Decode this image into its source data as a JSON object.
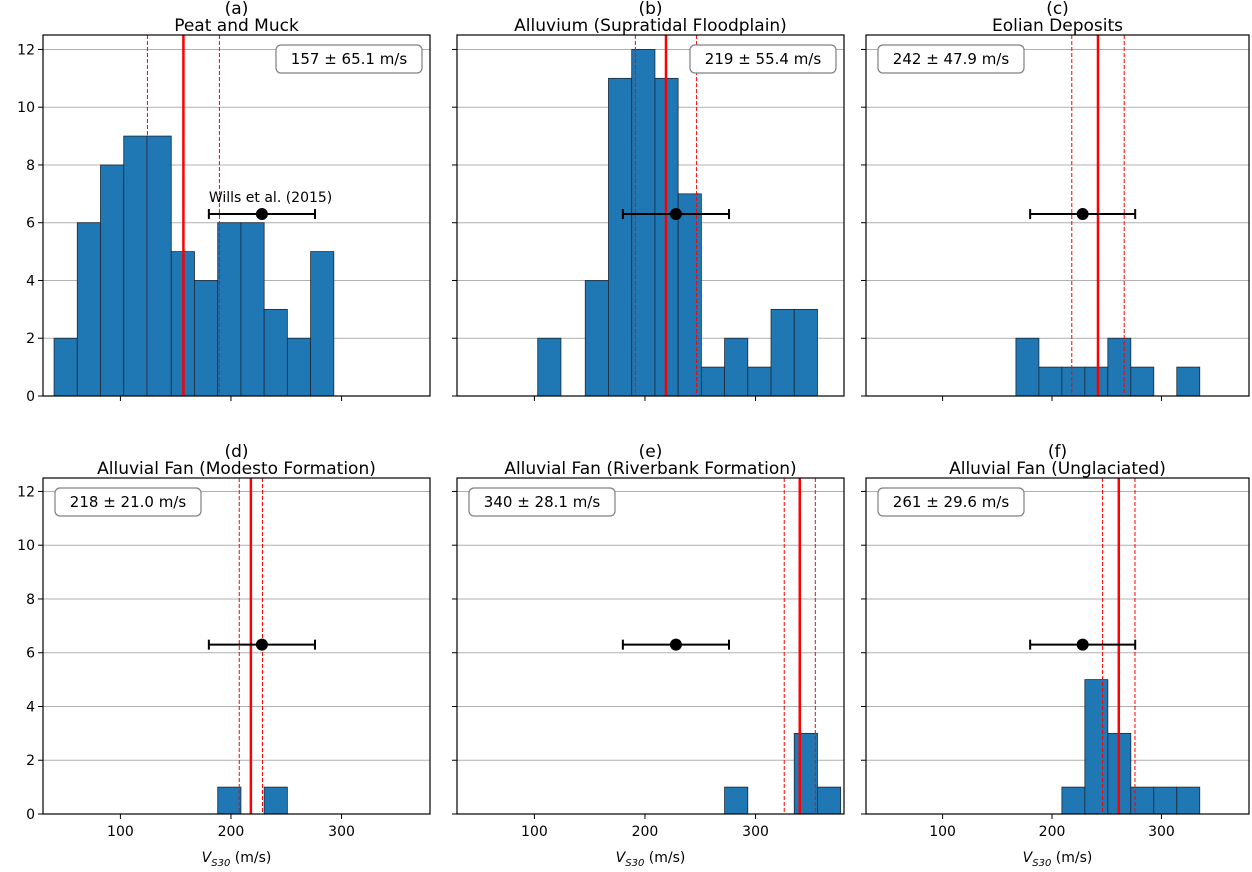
{
  "figure": {
    "xlabel_main": "V",
    "xlabel_sub": "S30",
    "xlabel_unit": " (m/s)",
    "reference_label": "Wills et al. (2015)"
  },
  "colors": {
    "bar": "#1f77b4",
    "bar_edge": "#1a2a3a",
    "mean_line": "#ff0000",
    "reference": "#000000",
    "grid": "#b0b0b0"
  },
  "chart_data": [
    {
      "type": "bar",
      "panel": "(a)",
      "title": "Peat and Muck",
      "stat_label": "157 ± 65.1 m/s",
      "legend_position": "top-right",
      "xlim": [
        30,
        380
      ],
      "ylim": [
        0,
        12.5
      ],
      "xticks": [
        100,
        200,
        300
      ],
      "yticks": [
        0,
        2,
        4,
        6,
        8,
        10,
        12
      ],
      "show_xtick_labels": false,
      "show_ytick_labels": true,
      "show_xlabel": false,
      "bins": [
        {
          "x0": 40,
          "x1": 61,
          "count": 2
        },
        {
          "x0": 61,
          "x1": 82,
          "count": 6
        },
        {
          "x0": 82,
          "x1": 103,
          "count": 8
        },
        {
          "x0": 103,
          "x1": 124,
          "count": 9
        },
        {
          "x0": 124,
          "x1": 146,
          "count": 9
        },
        {
          "x0": 146,
          "x1": 167,
          "count": 5
        },
        {
          "x0": 167,
          "x1": 188,
          "count": 4
        },
        {
          "x0": 188,
          "x1": 209,
          "count": 6
        },
        {
          "x0": 209,
          "x1": 230,
          "count": 6
        },
        {
          "x0": 230,
          "x1": 251,
          "count": 3
        },
        {
          "x0": 251,
          "x1": 272,
          "count": 2
        },
        {
          "x0": 272,
          "x1": 293,
          "count": 5
        }
      ],
      "mean": 157,
      "std": 65.1,
      "reference": {
        "x": 228,
        "xerr_low": 180,
        "xerr_high": 276,
        "y": 6.3
      },
      "show_reference_label": true
    },
    {
      "type": "bar",
      "panel": "(b)",
      "title": "Alluvium (Supratidal Floodplain)",
      "stat_label": "219 ± 55.4 m/s",
      "legend_position": "top-right",
      "xlim": [
        30,
        380
      ],
      "ylim": [
        0,
        12.5
      ],
      "xticks": [
        100,
        200,
        300
      ],
      "yticks": [
        0,
        2,
        4,
        6,
        8,
        10,
        12
      ],
      "show_xtick_labels": false,
      "show_ytick_labels": false,
      "show_xlabel": false,
      "bins": [
        {
          "x0": 103,
          "x1": 124,
          "count": 2
        },
        {
          "x0": 146,
          "x1": 167,
          "count": 4
        },
        {
          "x0": 167,
          "x1": 188,
          "count": 11
        },
        {
          "x0": 188,
          "x1": 209,
          "count": 12
        },
        {
          "x0": 209,
          "x1": 230,
          "count": 11
        },
        {
          "x0": 230,
          "x1": 251,
          "count": 7
        },
        {
          "x0": 251,
          "x1": 272,
          "count": 1
        },
        {
          "x0": 272,
          "x1": 293,
          "count": 2
        },
        {
          "x0": 293,
          "x1": 314,
          "count": 1
        },
        {
          "x0": 314,
          "x1": 335,
          "count": 3
        },
        {
          "x0": 335,
          "x1": 356,
          "count": 3
        }
      ],
      "mean": 219,
      "std": 55.4,
      "reference": {
        "x": 228,
        "xerr_low": 180,
        "xerr_high": 276,
        "y": 6.3
      },
      "show_reference_label": false
    },
    {
      "type": "bar",
      "panel": "(c)",
      "title": "Eolian Deposits",
      "stat_label": "242 ± 47.9 m/s",
      "legend_position": "top-left",
      "xlim": [
        30,
        380
      ],
      "ylim": [
        0,
        12.5
      ],
      "xticks": [
        100,
        200,
        300
      ],
      "yticks": [
        0,
        2,
        4,
        6,
        8,
        10,
        12
      ],
      "show_xtick_labels": false,
      "show_ytick_labels": false,
      "show_xlabel": false,
      "bins": [
        {
          "x0": 167,
          "x1": 188,
          "count": 2
        },
        {
          "x0": 188,
          "x1": 209,
          "count": 1
        },
        {
          "x0": 209,
          "x1": 230,
          "count": 1
        },
        {
          "x0": 230,
          "x1": 251,
          "count": 1
        },
        {
          "x0": 251,
          "x1": 272,
          "count": 2
        },
        {
          "x0": 272,
          "x1": 293,
          "count": 1
        },
        {
          "x0": 314,
          "x1": 335,
          "count": 1
        }
      ],
      "mean": 242,
      "std": 47.9,
      "reference": {
        "x": 228,
        "xerr_low": 180,
        "xerr_high": 276,
        "y": 6.3
      },
      "show_reference_label": false
    },
    {
      "type": "bar",
      "panel": "(d)",
      "title": "Alluvial Fan (Modesto Formation)",
      "stat_label": "218 ± 21.0 m/s",
      "legend_position": "top-left",
      "xlim": [
        30,
        380
      ],
      "ylim": [
        0,
        12.5
      ],
      "xticks": [
        100,
        200,
        300
      ],
      "yticks": [
        0,
        2,
        4,
        6,
        8,
        10,
        12
      ],
      "show_xtick_labels": true,
      "show_ytick_labels": true,
      "show_xlabel": true,
      "bins": [
        {
          "x0": 188,
          "x1": 209,
          "count": 1
        },
        {
          "x0": 230,
          "x1": 251,
          "count": 1
        }
      ],
      "mean": 218,
      "std": 21.0,
      "reference": {
        "x": 228,
        "xerr_low": 180,
        "xerr_high": 276,
        "y": 6.3
      },
      "show_reference_label": false
    },
    {
      "type": "bar",
      "panel": "(e)",
      "title": "Alluvial Fan (Riverbank Formation)",
      "stat_label": "340 ± 28.1 m/s",
      "legend_position": "top-left",
      "xlim": [
        30,
        380
      ],
      "ylim": [
        0,
        12.5
      ],
      "xticks": [
        100,
        200,
        300
      ],
      "yticks": [
        0,
        2,
        4,
        6,
        8,
        10,
        12
      ],
      "show_xtick_labels": true,
      "show_ytick_labels": false,
      "show_xlabel": true,
      "bins": [
        {
          "x0": 272,
          "x1": 293,
          "count": 1
        },
        {
          "x0": 335,
          "x1": 356,
          "count": 3
        },
        {
          "x0": 356,
          "x1": 377,
          "count": 1
        }
      ],
      "mean": 340,
      "std": 28.1,
      "reference": {
        "x": 228,
        "xerr_low": 180,
        "xerr_high": 276,
        "y": 6.3
      },
      "show_reference_label": false
    },
    {
      "type": "bar",
      "panel": "(f)",
      "title": "Alluvial Fan (Unglaciated)",
      "stat_label": "261 ± 29.6 m/s",
      "legend_position": "top-left",
      "xlim": [
        30,
        380
      ],
      "ylim": [
        0,
        12.5
      ],
      "xticks": [
        100,
        200,
        300
      ],
      "yticks": [
        0,
        2,
        4,
        6,
        8,
        10,
        12
      ],
      "show_xtick_labels": true,
      "show_ytick_labels": false,
      "show_xlabel": true,
      "bins": [
        {
          "x0": 209,
          "x1": 230,
          "count": 1
        },
        {
          "x0": 230,
          "x1": 251,
          "count": 5
        },
        {
          "x0": 251,
          "x1": 272,
          "count": 3
        },
        {
          "x0": 272,
          "x1": 293,
          "count": 1
        },
        {
          "x0": 293,
          "x1": 314,
          "count": 1
        },
        {
          "x0": 314,
          "x1": 335,
          "count": 1
        }
      ],
      "mean": 261,
      "std": 29.6,
      "reference": {
        "x": 228,
        "xerr_low": 180,
        "xerr_high": 276,
        "y": 6.3
      },
      "show_reference_label": false
    }
  ]
}
